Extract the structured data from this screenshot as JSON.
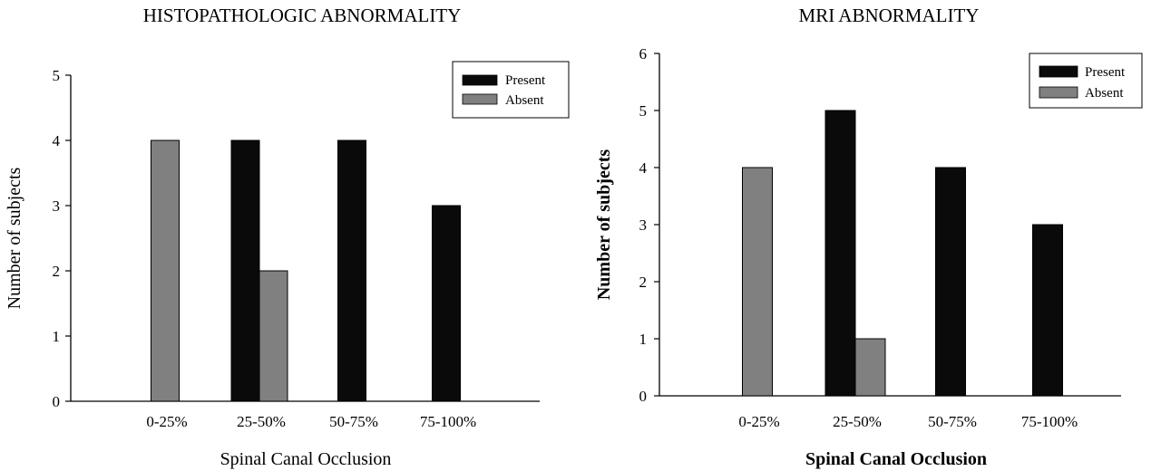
{
  "chart_data": [
    {
      "type": "bar",
      "title": "HISTOPATHOLOGIC ABNORMALITY",
      "xlabel": "Spinal Canal Occlusion",
      "ylabel": "Number of subjects",
      "categories": [
        "0-25%",
        "25-50%",
        "50-75%",
        "75-100%"
      ],
      "ylim": [
        0,
        5
      ],
      "yticks": [
        0,
        1,
        2,
        3,
        4,
        5
      ],
      "series": [
        {
          "name": "Present",
          "color": "#0a0a0a",
          "values": [
            0,
            4,
            4,
            3
          ]
        },
        {
          "name": "Absent",
          "color": "#808080",
          "values": [
            4,
            2,
            0,
            0
          ]
        }
      ],
      "legend": "top-right",
      "grid": false
    },
    {
      "type": "bar",
      "title": "MRI ABNORMALITY",
      "xlabel": "Spinal Canal Occlusion",
      "ylabel": "Number of subjects",
      "categories": [
        "0-25%",
        "25-50%",
        "50-75%",
        "75-100%"
      ],
      "ylim": [
        0,
        6
      ],
      "yticks": [
        0,
        1,
        2,
        3,
        4,
        5,
        6
      ],
      "series": [
        {
          "name": "Present",
          "color": "#0a0a0a",
          "values": [
            0,
            5,
            4,
            3
          ]
        },
        {
          "name": "Absent",
          "color": "#808080",
          "values": [
            4,
            1,
            0,
            0
          ]
        }
      ],
      "legend": "top-right",
      "grid": false
    }
  ]
}
